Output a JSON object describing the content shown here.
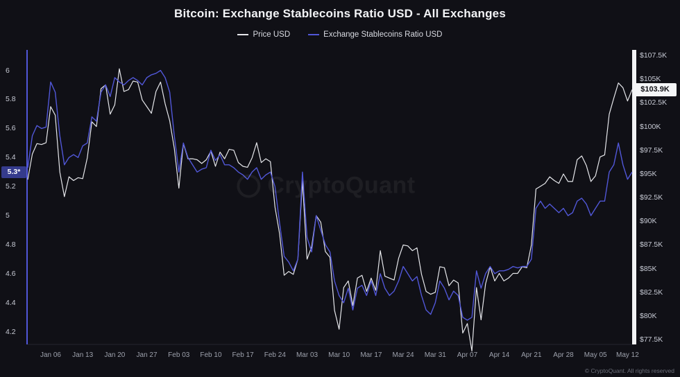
{
  "page": {
    "title": "Bitcoin: Exchange Stablecoins Ratio USD - All Exchanges",
    "watermark": "CryptoQuant",
    "footer": "© CryptoQuant. All rights reserved"
  },
  "legend": [
    {
      "label": "Price USD",
      "color": "#e6e7eb"
    },
    {
      "label": "Exchange Stablecoins Ratio USD",
      "color": "#5157d8"
    }
  ],
  "chart_data": {
    "type": "line",
    "title": "Bitcoin: Exchange Stablecoins Ratio USD - All Exchanges",
    "legend_position": "top",
    "grid": false,
    "x_ticks": [
      {
        "label": "Jan 06",
        "i": 5
      },
      {
        "label": "Jan 13",
        "i": 12
      },
      {
        "label": "Jan 20",
        "i": 19
      },
      {
        "label": "Jan 27",
        "i": 26
      },
      {
        "label": "Feb 03",
        "i": 33
      },
      {
        "label": "Feb 10",
        "i": 40
      },
      {
        "label": "Feb 17",
        "i": 47
      },
      {
        "label": "Feb 24",
        "i": 54
      },
      {
        "label": "Mar 03",
        "i": 61
      },
      {
        "label": "Mar 10",
        "i": 68
      },
      {
        "label": "Mar 17",
        "i": 75
      },
      {
        "label": "Mar 24",
        "i": 82
      },
      {
        "label": "Mar 31",
        "i": 89
      },
      {
        "label": "Apr 07",
        "i": 96
      },
      {
        "label": "Apr 14",
        "i": 103
      },
      {
        "label": "Apr 21",
        "i": 110
      },
      {
        "label": "Apr 28",
        "i": 117
      },
      {
        "label": "May 05",
        "i": 124
      },
      {
        "label": "May 12",
        "i": 131
      }
    ],
    "left_axis": {
      "title": "Exchange Stablecoins Ratio USD",
      "ticks": [
        "6",
        "5.8",
        "5.6",
        "5.4",
        "5.2",
        "5",
        "4.8",
        "4.6",
        "4.4",
        "4.2"
      ],
      "tick_values": [
        6,
        5.8,
        5.6,
        5.4,
        5.2,
        5,
        4.8,
        4.6,
        4.4,
        4.2
      ],
      "range": [
        4.113,
        6.122
      ],
      "current_label": "5.3*",
      "current_value": 5.3,
      "axis_color": "#5157d8"
    },
    "right_axis": {
      "title": "Price USD",
      "ticks": [
        "$107.5K",
        "$105K",
        "$102.5K",
        "$100K",
        "$97.5K",
        "$95K",
        "$92.5K",
        "$90K",
        "$87.5K",
        "$85K",
        "$82.5K",
        "$80K",
        "$77.5K"
      ],
      "tick_values": [
        107.5,
        105,
        102.5,
        100,
        97.5,
        95,
        92.5,
        90,
        87.5,
        85,
        82.5,
        80,
        77.5
      ],
      "range": [
        77.0,
        107.8
      ],
      "current_label": "$103.9K",
      "current_value": 103.9,
      "axis_color": "#f2f3f5"
    },
    "series": [
      {
        "name": "Price USD",
        "axis": "right",
        "color": "#e6e7eb",
        "width": 1.2,
        "values": [
          94.4,
          97.1,
          98.2,
          98.1,
          98.3,
          102.1,
          101.2,
          95.2,
          92.6,
          94.7,
          94.3,
          94.6,
          94.5,
          96.7,
          100.5,
          100.0,
          104.0,
          104.4,
          101.3,
          102.3,
          106.1,
          103.7,
          103.9,
          104.8,
          104.7,
          102.8,
          102.1,
          101.4,
          103.7,
          104.7,
          102.4,
          100.6,
          97.7,
          93.5,
          98.2,
          96.6,
          96.6,
          96.5,
          96.1,
          96.5,
          97.4,
          95.8,
          97.3,
          96.6,
          97.6,
          97.5,
          96.2,
          95.8,
          95.7,
          96.7,
          98.3,
          96.2,
          96.6,
          96.3,
          91.5,
          88.7,
          84.3,
          84.7,
          84.4,
          86.0,
          94.3,
          86.0,
          87.3,
          90.6,
          89.9,
          86.8,
          86.2,
          80.6,
          78.6,
          83.0,
          83.7,
          81.1,
          84.0,
          84.3,
          82.6,
          84.0,
          82.7,
          86.9,
          84.2,
          84.0,
          83.8,
          86.1,
          87.5,
          87.4,
          86.9,
          87.2,
          84.4,
          82.6,
          82.3,
          82.5,
          85.2,
          85.1,
          83.2,
          83.8,
          83.5,
          78.2,
          79.2,
          76.3,
          83.0,
          79.6,
          83.4,
          85.2,
          83.7,
          84.5,
          83.7,
          84.0,
          84.5,
          84.5,
          85.2,
          85.1,
          87.5,
          93.4,
          93.7,
          94.0,
          94.7,
          94.3,
          94.0,
          95.0,
          94.2,
          94.2,
          96.5,
          96.9,
          95.9,
          94.2,
          94.8,
          96.8,
          97.0,
          101.3,
          103.0,
          104.6,
          104.1,
          102.7,
          103.9
        ]
      },
      {
        "name": "Exchange Stablecoins Ratio USD",
        "axis": "left",
        "color": "#5157d8",
        "width": 1.4,
        "values": [
          5.33,
          5.55,
          5.62,
          5.6,
          5.61,
          5.92,
          5.85,
          5.55,
          5.35,
          5.4,
          5.42,
          5.4,
          5.48,
          5.5,
          5.68,
          5.65,
          5.85,
          5.9,
          5.82,
          5.95,
          5.92,
          5.9,
          5.93,
          5.95,
          5.93,
          5.9,
          5.95,
          5.97,
          5.98,
          6.0,
          5.95,
          5.85,
          5.55,
          5.3,
          5.5,
          5.4,
          5.35,
          5.3,
          5.32,
          5.33,
          5.45,
          5.38,
          5.42,
          5.35,
          5.35,
          5.33,
          5.3,
          5.28,
          5.25,
          5.3,
          5.33,
          5.25,
          5.28,
          5.3,
          5.2,
          4.95,
          4.72,
          4.68,
          4.62,
          4.7,
          5.3,
          4.85,
          4.75,
          5.0,
          4.9,
          4.8,
          4.75,
          4.55,
          4.45,
          4.4,
          4.5,
          4.35,
          4.5,
          4.52,
          4.45,
          4.55,
          4.45,
          4.6,
          4.5,
          4.45,
          4.48,
          4.55,
          4.65,
          4.6,
          4.55,
          4.58,
          4.45,
          4.35,
          4.32,
          4.4,
          4.55,
          4.5,
          4.42,
          4.48,
          4.45,
          4.3,
          4.28,
          4.3,
          4.62,
          4.5,
          4.6,
          4.65,
          4.6,
          4.62,
          4.62,
          4.63,
          4.65,
          4.64,
          4.65,
          4.65,
          4.7,
          5.05,
          5.1,
          5.05,
          5.08,
          5.05,
          5.02,
          5.05,
          5.0,
          5.02,
          5.1,
          5.12,
          5.08,
          5.0,
          5.05,
          5.1,
          5.1,
          5.3,
          5.35,
          5.5,
          5.35,
          5.25,
          5.3
        ]
      }
    ]
  }
}
